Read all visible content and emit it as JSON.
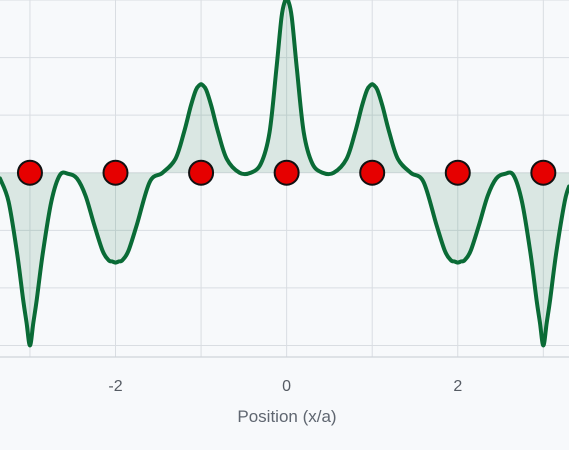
{
  "chart_data": {
    "type": "line",
    "title": "",
    "xlabel": "Position (x/a)",
    "ylabel": "",
    "x_ticks": [
      "-2",
      "0",
      "2"
    ],
    "x_tick_values": [
      -2,
      0,
      2
    ],
    "xlim": [
      -3.35,
      3.3
    ],
    "ylim": [
      -1.6,
      1.5
    ],
    "grid": true,
    "series": [
      {
        "kind": "curve",
        "style": "filled-line",
        "x": [
          -3.35,
          -3.25,
          -3.15,
          -3.08,
          -3.04,
          -3.0,
          -2.96,
          -2.92,
          -2.85,
          -2.75,
          -2.65,
          -2.55,
          -2.45,
          -2.35,
          -2.25,
          -2.15,
          -2.08,
          -2.04,
          -2.0,
          -1.96,
          -1.92,
          -1.85,
          -1.75,
          -1.6,
          -1.45,
          -1.3,
          -1.2,
          -1.12,
          -1.06,
          -1.02,
          -1.0,
          -0.98,
          -0.94,
          -0.88,
          -0.8,
          -0.7,
          -0.55,
          -0.42,
          -0.3,
          -0.2,
          -0.12,
          -0.06,
          -0.02,
          0.0,
          0.02,
          0.06,
          0.12,
          0.2,
          0.3,
          0.42,
          0.55,
          0.7,
          0.8,
          0.88,
          0.94,
          0.98,
          1.0,
          1.02,
          1.06,
          1.12,
          1.2,
          1.3,
          1.45,
          1.6,
          1.75,
          1.85,
          1.92,
          1.96,
          2.0,
          2.04,
          2.08,
          2.15,
          2.25,
          2.35,
          2.45,
          2.55,
          2.65,
          2.75,
          2.85,
          2.92,
          2.96,
          3.0,
          3.04,
          3.08,
          3.15,
          3.25,
          3.3
        ],
        "y": [
          -0.05,
          -0.25,
          -0.7,
          -1.1,
          -1.3,
          -1.5,
          -1.3,
          -1.1,
          -0.7,
          -0.25,
          -0.02,
          -0.01,
          -0.05,
          -0.2,
          -0.45,
          -0.68,
          -0.76,
          -0.77,
          -0.78,
          -0.77,
          -0.76,
          -0.68,
          -0.45,
          -0.08,
          0.0,
          0.12,
          0.35,
          0.58,
          0.72,
          0.76,
          0.77,
          0.76,
          0.72,
          0.58,
          0.35,
          0.12,
          0.0,
          0.0,
          0.08,
          0.35,
          0.9,
          1.35,
          1.49,
          1.5,
          1.49,
          1.35,
          0.9,
          0.35,
          0.08,
          0.0,
          0.0,
          0.12,
          0.35,
          0.58,
          0.72,
          0.76,
          0.77,
          0.76,
          0.72,
          0.58,
          0.35,
          0.12,
          0.0,
          -0.08,
          -0.45,
          -0.68,
          -0.76,
          -0.77,
          -0.78,
          -0.77,
          -0.76,
          -0.68,
          -0.45,
          -0.2,
          -0.05,
          -0.01,
          -0.02,
          -0.25,
          -0.7,
          -1.1,
          -1.3,
          -1.5,
          -1.3,
          -1.1,
          -0.7,
          -0.25,
          -0.12
        ]
      },
      {
        "kind": "points",
        "style": "markers",
        "x": [
          -3,
          -2,
          -1,
          0,
          1,
          2,
          3
        ],
        "y": [
          0,
          0,
          0,
          0,
          0,
          0,
          0
        ]
      }
    ],
    "colors": {
      "line": "#0a6b36",
      "fill": "#0a6b36",
      "marker_fill": "#e60000",
      "marker_stroke": "#111111"
    }
  }
}
